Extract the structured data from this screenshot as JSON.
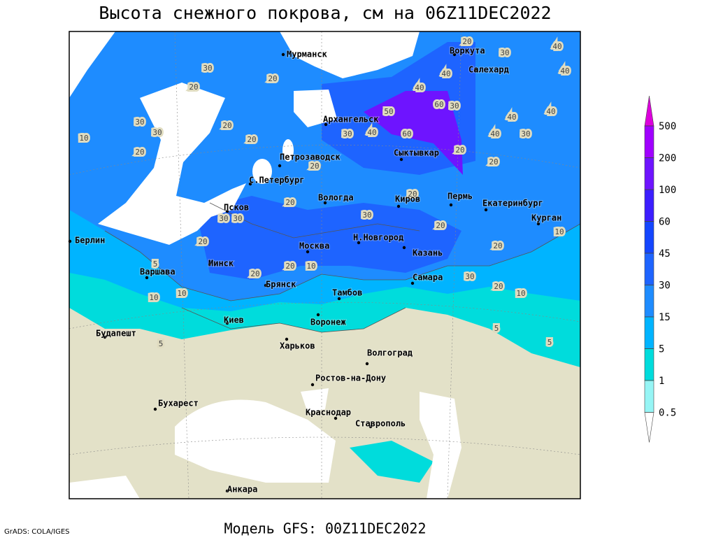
{
  "title": "Высота снежного покрова, см на 06Z11DEC2022",
  "cities": [
    "Мурманск",
    "Воркута",
    "Салехард",
    "Архангельск",
    "Сыктывкар",
    "Петрозаводск",
    "С.Петербург",
    "Вологда",
    "Киров",
    "Пермь",
    "Екатеринбург",
    "Курган",
    "Псков",
    "Н.Новгород",
    "Казань",
    "Москва",
    "Минск",
    "Берлин",
    "Варшава",
    "Брянск",
    "Тамбов",
    "Самара",
    "Киев",
    "Воронеж",
    "Будапешт",
    "Харьков",
    "Волгоград",
    "Ростов-на-Дону",
    "Бухарест",
    "Краснодар",
    "Ставрополь",
    "Анкара"
  ],
  "contour_labels": [
    30,
    20,
    20,
    30,
    30,
    20,
    10,
    20,
    20,
    20,
    20,
    30,
    20,
    30,
    30,
    20,
    20,
    10,
    20,
    10,
    10,
    5,
    40,
    40,
    60,
    60,
    50,
    30,
    30,
    40,
    20,
    40,
    40,
    30,
    40,
    40,
    40,
    20,
    30,
    20,
    10,
    20,
    30,
    20,
    10,
    5,
    5,
    5,
    20
  ],
  "legend": {
    "levels": [
      500,
      200,
      100,
      60,
      45,
      30,
      15,
      5,
      1,
      0.5
    ],
    "colors": [
      "#dc00dc",
      "#a000ff",
      "#6e14ff",
      "#3c1eff",
      "#1446ff",
      "#1e64ff",
      "#1e8cff",
      "#00b4ff",
      "#00dcdc",
      "#96f5f5",
      "#ffffff"
    ]
  },
  "footer": {
    "model": "Модель GFS: 00Z11DEC2022",
    "credit": "GrADS: COLA/IGES"
  }
}
